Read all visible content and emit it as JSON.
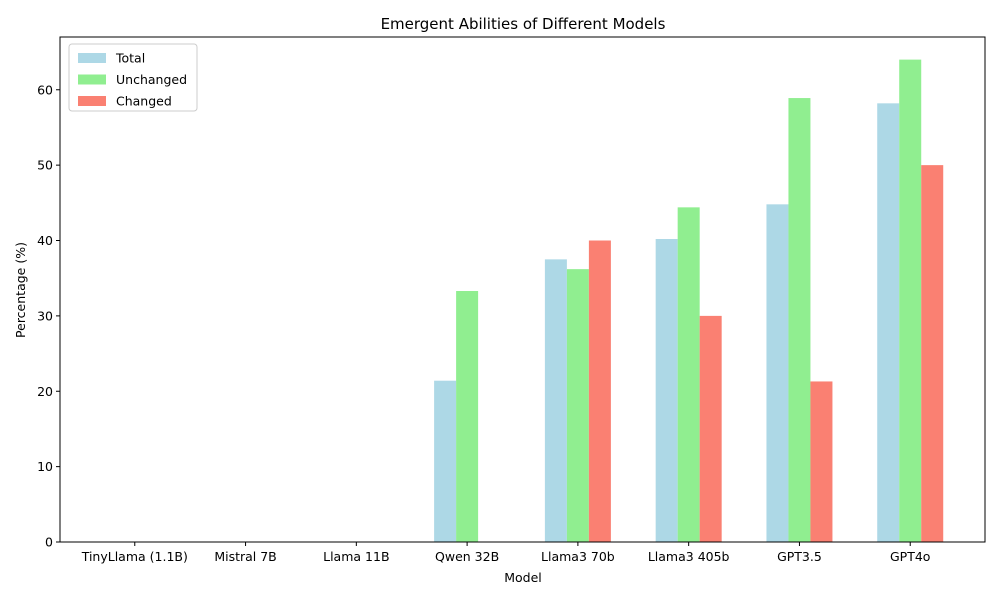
{
  "chart_data": {
    "type": "bar",
    "title": "Emergent Abilities of Different Models",
    "xlabel": "Model",
    "ylabel": "Percentage (%)",
    "categories": [
      "TinyLlama (1.1B)",
      "Mistral 7B",
      "Llama 11B",
      "Qwen 32B",
      "Llama3 70b",
      "Llama3 405b",
      "GPT3.5",
      "GPT4o"
    ],
    "ylim": [
      0,
      67
    ],
    "yticks": [
      0,
      10,
      20,
      30,
      40,
      50,
      60
    ],
    "grid": false,
    "legend_position": "top-left",
    "series": [
      {
        "name": "Total",
        "color": "#add8e6",
        "values": [
          0,
          0,
          0,
          21.4,
          37.5,
          40.2,
          44.8,
          58.2
        ]
      },
      {
        "name": "Unchanged",
        "color": "#90ee90",
        "values": [
          0,
          0,
          0,
          33.3,
          36.2,
          44.4,
          58.9,
          64.0
        ]
      },
      {
        "name": "Changed",
        "color": "#fa8072",
        "values": [
          0,
          0,
          0,
          0,
          40.0,
          30.0,
          21.3,
          50.0
        ]
      }
    ]
  }
}
